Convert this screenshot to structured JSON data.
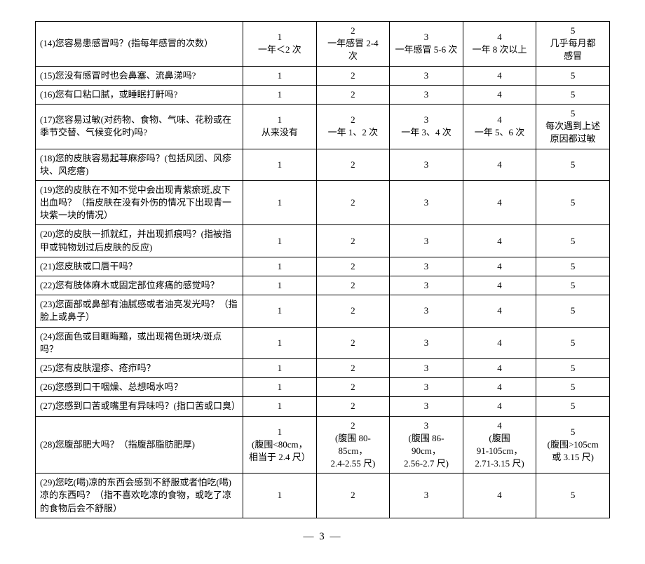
{
  "rows": [
    {
      "q": "(14)您容易患感冒吗？(指每年感冒的次数）",
      "opts": [
        "1\n一年＜2 次",
        "2\n一年感冒 2-4\n次",
        "3\n一年感冒 5-6 次",
        "4\n一年 8 次以上",
        "5\n几乎每月都\n感冒"
      ]
    },
    {
      "q": "(15)您没有感冒时也会鼻塞、流鼻涕吗?",
      "opts": [
        "1",
        "2",
        "3",
        "4",
        "5"
      ]
    },
    {
      "q": "(16)您有口粘口腻，或睡眠打鼾吗?",
      "opts": [
        "1",
        "2",
        "3",
        "4",
        "5"
      ]
    },
    {
      "q": "(17)您容易过敏(对药物、食物、气味、花粉或在季节交替、气候变化时)吗?",
      "opts": [
        "1\n从来没有",
        "2\n一年 1、2 次",
        "3\n一年 3、4 次",
        "4\n一年 5、6 次",
        "5\n每次遇到上述\n原因都过敏"
      ]
    },
    {
      "q": "(18)您的皮肤容易起荨麻疹吗？(包括风团、风疹块、风疙瘩)",
      "opts": [
        "1",
        "2",
        "3",
        "4",
        "5"
      ]
    },
    {
      "q": "(19)您的皮肤在不知不觉中会出现青紫瘀斑,皮下出血吗？（指皮肤在没有外伤的情况下出现青一块紫一块的情况）",
      "opts": [
        "1",
        "2",
        "3",
        "4",
        "5"
      ]
    },
    {
      "q": "(20)您的皮肤一抓就红，并出现抓痕吗？(指被指甲或钝物划过后皮肤的反应)",
      "opts": [
        "1",
        "2",
        "3",
        "4",
        "5"
      ]
    },
    {
      "q": "(21)您皮肤或口唇干吗？",
      "opts": [
        "1",
        "2",
        "3",
        "4",
        "5"
      ]
    },
    {
      "q": "(22)您有肢体麻木或固定部位疼痛的感觉吗？",
      "opts": [
        "1",
        "2",
        "3",
        "4",
        "5"
      ]
    },
    {
      "q": "(23)您面部或鼻部有油腻感或者油亮发光吗？（指脸上或鼻子）",
      "opts": [
        "1",
        "2",
        "3",
        "4",
        "5"
      ]
    },
    {
      "q": "(24)您面色或目眶晦黯，或出现褐色斑块/斑点吗？",
      "opts": [
        "1",
        "2",
        "3",
        "4",
        "5"
      ]
    },
    {
      "q": "(25)您有皮肤湿疹、疮疖吗？",
      "opts": [
        "1",
        "2",
        "3",
        "4",
        "5"
      ]
    },
    {
      "q": "(26)您感到口干咽燥、总想喝水吗？",
      "opts": [
        "1",
        "2",
        "3",
        "4",
        "5"
      ]
    },
    {
      "q": "(27)您感到口苦或嘴里有异味吗？(指口苦或口臭）",
      "opts": [
        "1",
        "2",
        "3",
        "4",
        "5"
      ]
    },
    {
      "q": "(28)您腹部肥大吗？（指腹部脂肪肥厚)",
      "opts": [
        "1\n(腹围<80cm，\n相当于 2.4 尺）",
        "2\n(腹围 80-85cm，\n2.4-2.55 尺)",
        "3\n(腹围 86-90cm，\n2.56-2.7 尺)",
        "4\n(腹围\n91-105cm，\n2.71-3.15 尺)",
        "5\n(腹围>105cm\n或 3.15 尺)"
      ]
    },
    {
      "q": "(29)您吃(喝)凉的东西会感到不舒服或者怕吃(喝)凉的东西吗？（指不喜欢吃凉的食物，或吃了凉的食物后会不舒服）",
      "opts": [
        "1",
        "2",
        "3",
        "4",
        "5"
      ]
    }
  ],
  "pageNumber": "— 3 —"
}
